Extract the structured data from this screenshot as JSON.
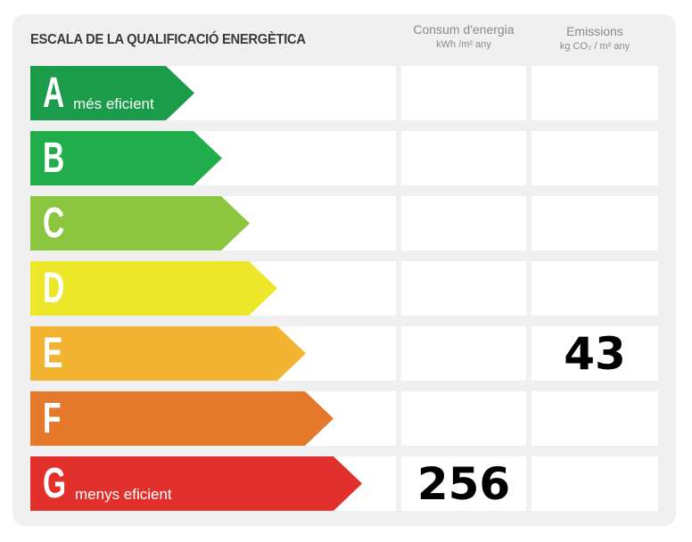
{
  "title": "ESCALA DE LA QUALIFICACIÓ ENERGÈTICA",
  "columns": {
    "consumption": {
      "title": "Consum d'energia",
      "unit": "kWh /m² any"
    },
    "emissions": {
      "title": "Emissions",
      "unit": "kg CO₂ / m² any"
    }
  },
  "bands": [
    {
      "letter": "A",
      "label": "més eficient",
      "color": "#1a9c4a"
    },
    {
      "letter": "B",
      "label": "",
      "color": "#22ad4c"
    },
    {
      "letter": "C",
      "label": "",
      "color": "#8cc63f"
    },
    {
      "letter": "D",
      "label": "",
      "color": "#ece728"
    },
    {
      "letter": "E",
      "label": "",
      "color": "#f2b431"
    },
    {
      "letter": "F",
      "label": "",
      "color": "#e4782b"
    },
    {
      "letter": "G",
      "label": "menys eficient",
      "color": "#e2302d"
    }
  ],
  "values": {
    "consumption": {
      "rating": "G",
      "value": "256"
    },
    "emissions": {
      "rating": "E",
      "value": "43"
    }
  }
}
